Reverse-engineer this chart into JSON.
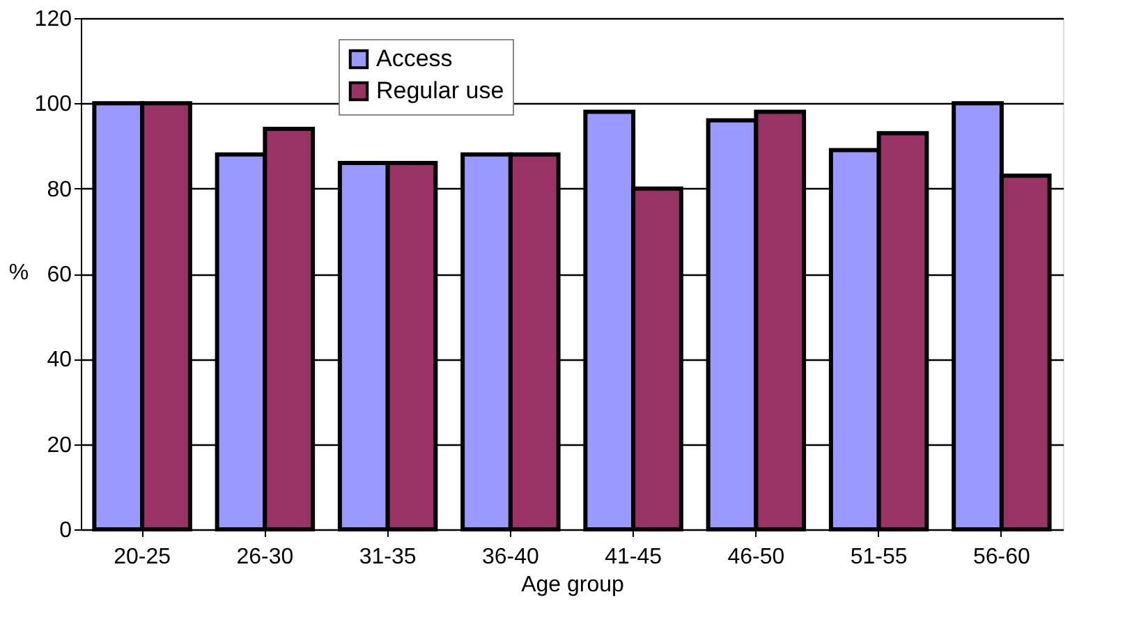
{
  "chart_data": {
    "type": "bar",
    "xlabel": "Age group",
    "ylabel": "%",
    "categories": [
      "20-25",
      "26-30",
      "31-35",
      "36-40",
      "41-45",
      "46-50",
      "51-55",
      "56-60"
    ],
    "series": [
      {
        "name": "Access",
        "color": "#9999ff",
        "values": [
          100,
          88,
          86,
          88,
          98,
          96,
          89,
          100
        ]
      },
      {
        "name": "Regular use",
        "color": "#993366",
        "values": [
          100,
          94,
          86,
          88,
          80,
          98,
          93,
          83
        ]
      }
    ],
    "ylim": [
      0,
      120
    ],
    "yticks": [
      0,
      20,
      40,
      60,
      80,
      100,
      120
    ],
    "grid": "y",
    "legend": "top"
  }
}
